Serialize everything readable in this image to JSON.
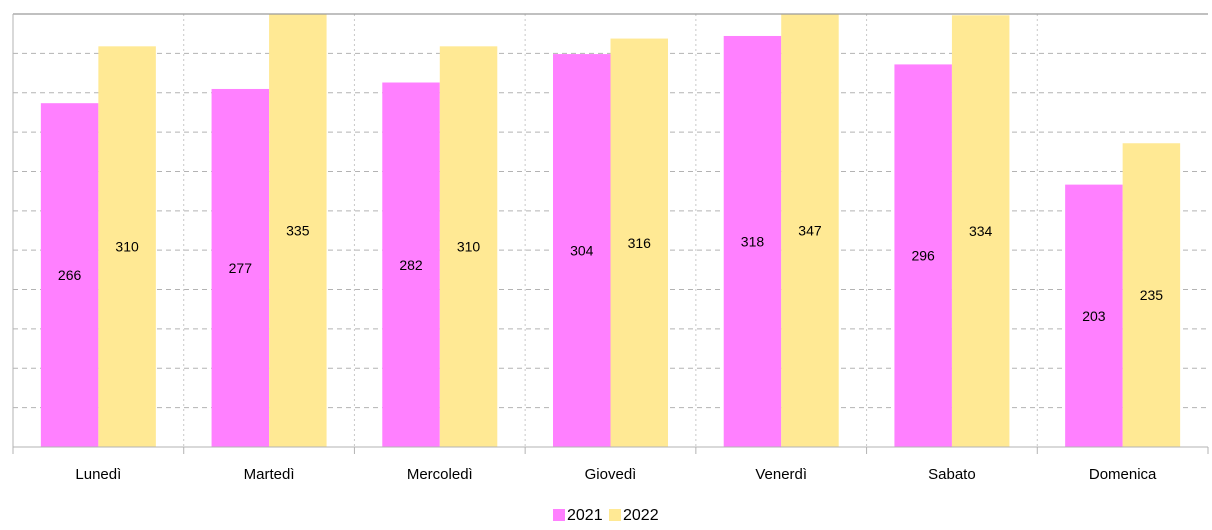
{
  "chart_data": {
    "type": "bar",
    "categories": [
      "Lunedì",
      "Martedì",
      "Mercoledì",
      "Giovedì",
      "Venerdì",
      "Sabato",
      "Domenica"
    ],
    "series": [
      {
        "name": "2021",
        "values": [
          266,
          277,
          282,
          304,
          318,
          296,
          203
        ],
        "color": "#ff80ff"
      },
      {
        "name": "2022",
        "values": [
          310,
          335,
          310,
          316,
          347,
          334,
          235
        ],
        "color": "#ffe994"
      }
    ],
    "title": "",
    "xlabel": "",
    "ylabel": "",
    "ylim": [
      0,
      335
    ],
    "grid": true,
    "legend": "bottom-center",
    "data_labels": true
  }
}
